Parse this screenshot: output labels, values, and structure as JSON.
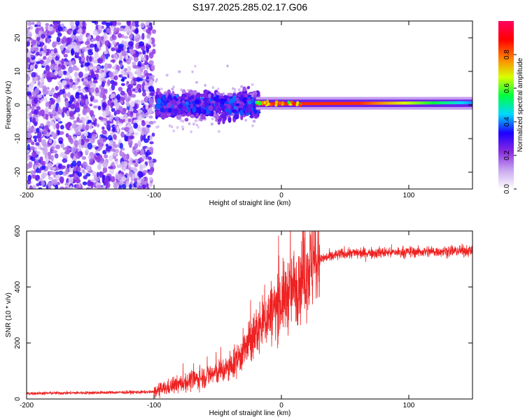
{
  "title": "S197.2025.285.02.17.G06",
  "chart_data": [
    {
      "type": "heatmap",
      "xlabel": "Height of straight line (km)",
      "ylabel": "Frequency (Hz)",
      "xlim": [
        -200,
        150
      ],
      "ylim": [
        -25,
        25
      ],
      "xticks": [
        -200,
        -100,
        0,
        100
      ],
      "yticks": [
        -20,
        -10,
        0,
        10,
        20
      ],
      "colorbar": {
        "label": "Normalized spectral amplitude",
        "range": [
          0,
          1
        ],
        "ticks": [
          "0.0",
          "0.2",
          "0.4",
          "0.6",
          "0.8"
        ],
        "colors": [
          "#ffffff",
          "#c9a8f0",
          "#8a2be2",
          "#1e00ff",
          "#00d8ff",
          "#00ff40",
          "#d8ff00",
          "#ff8000",
          "#ff0000",
          "#ff0060"
        ]
      },
      "segments": [
        {
          "x_from": -200,
          "x_to": -100,
          "description_level": 0.25,
          "center_hz": 0,
          "spread_hz": 25
        },
        {
          "x_from": -100,
          "x_to": -20,
          "description_level": 0.3,
          "center_hz": 0,
          "spread_hz": 6
        },
        {
          "x_from": -20,
          "x_to": 150,
          "description_level": 0.9,
          "center_hz": 0.5,
          "spread_hz": 1
        }
      ]
    },
    {
      "type": "line",
      "xlabel": "Height of straight line (km)",
      "ylabel": "SNR (10 * v/v)",
      "xlim": [
        -200,
        150
      ],
      "ylim": [
        0,
        600
      ],
      "xticks": [
        -200,
        -100,
        0,
        100
      ],
      "yticks": [
        0,
        200,
        400,
        600
      ],
      "color": "#ee2222",
      "profile": [
        {
          "x": -200,
          "y": 20
        },
        {
          "x": -100,
          "y": 25
        },
        {
          "x": -90,
          "y": 40
        },
        {
          "x": -60,
          "y": 80
        },
        {
          "x": -40,
          "y": 110
        },
        {
          "x": -25,
          "y": 200
        },
        {
          "x": -10,
          "y": 300
        },
        {
          "x": 0,
          "y": 350
        },
        {
          "x": 10,
          "y": 400
        },
        {
          "x": 20,
          "y": 460
        },
        {
          "x": 30,
          "y": 500
        },
        {
          "x": 50,
          "y": 520
        },
        {
          "x": 150,
          "y": 530
        }
      ]
    }
  ]
}
